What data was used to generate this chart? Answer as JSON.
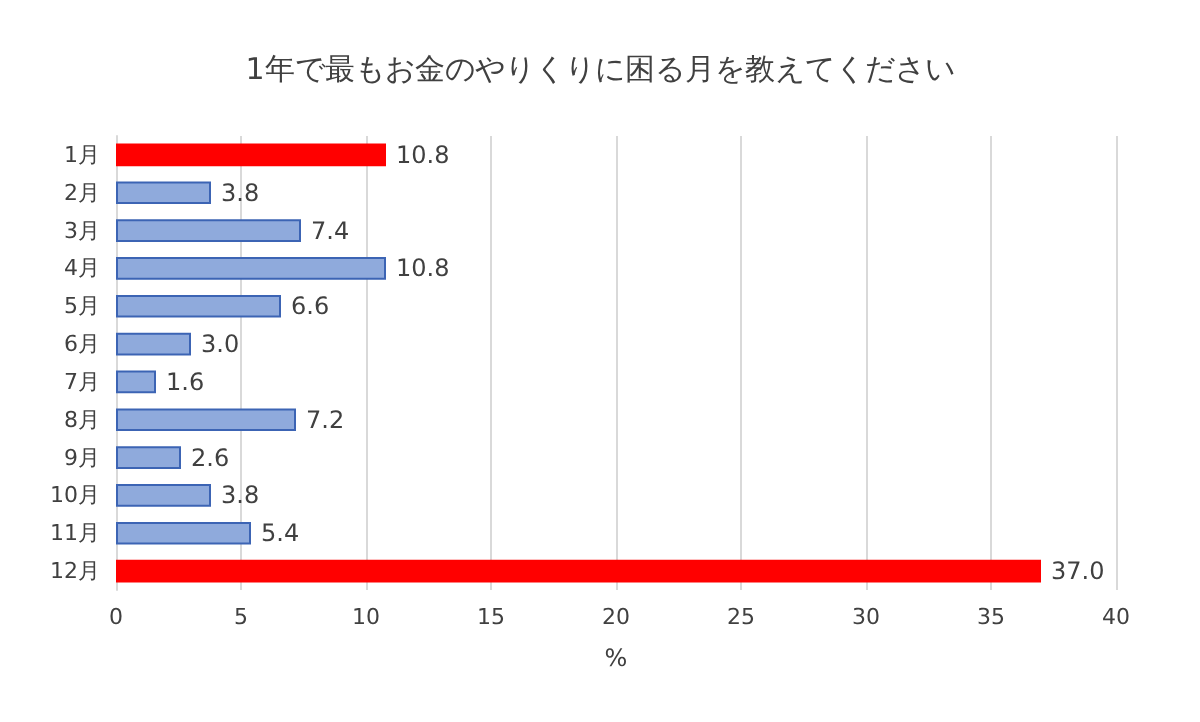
{
  "chart_data": {
    "type": "bar",
    "orientation": "horizontal",
    "title": "1年で最もお金のやりくりに困る月を教えてください",
    "xlabel": "%",
    "categories": [
      "1月",
      "2月",
      "3月",
      "4月",
      "5月",
      "6月",
      "7月",
      "8月",
      "9月",
      "10月",
      "11月",
      "12月"
    ],
    "values": [
      10.8,
      3.8,
      7.4,
      10.8,
      6.6,
      3.0,
      1.6,
      7.2,
      2.6,
      3.8,
      5.4,
      37.0
    ],
    "value_labels": [
      "10.8",
      "3.8",
      "7.4",
      "10.8",
      "6.6",
      "3.0",
      "1.6",
      "7.2",
      "2.6",
      "3.8",
      "5.4",
      "37.0"
    ],
    "colors": [
      "#ff0000",
      "#8faadc",
      "#8faadc",
      "#8faadc",
      "#8faadc",
      "#8faadc",
      "#8faadc",
      "#8faadc",
      "#8faadc",
      "#8faadc",
      "#8faadc",
      "#ff0000"
    ],
    "xlim": [
      0,
      40
    ],
    "xticks": [
      0,
      5,
      10,
      15,
      20,
      25,
      30,
      35,
      40
    ],
    "grid": "x"
  }
}
